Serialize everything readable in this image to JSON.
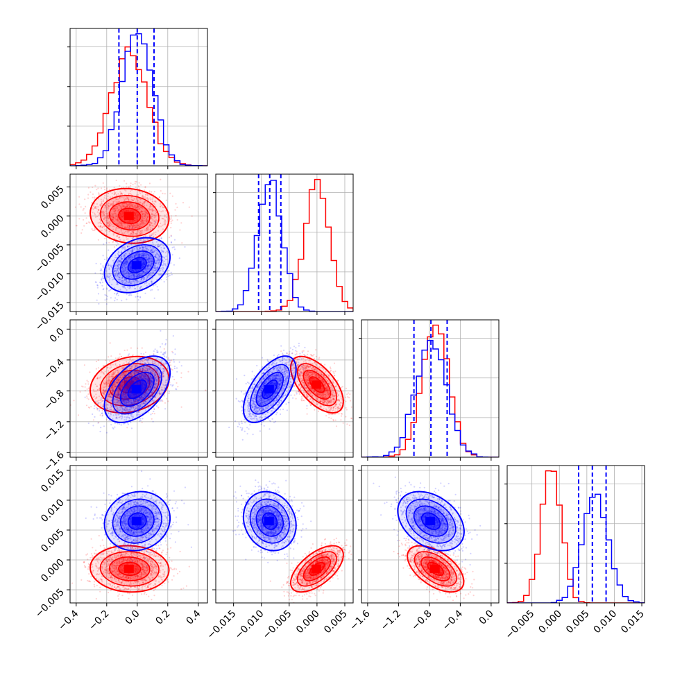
{
  "chart_data": {
    "type": "scatter",
    "kind": "corner plot",
    "grid": true,
    "series": [
      {
        "color": "#ff0000",
        "mean": [
          -0.05,
          0.0,
          -0.72,
          -0.0015
        ],
        "sd": [
          0.12,
          0.0022,
          0.17,
          0.0018
        ],
        "corr": [
          [
            0,
            1,
            -0.1
          ],
          [
            0,
            2,
            0.2
          ],
          [
            0,
            3,
            -0.05
          ],
          [
            1,
            2,
            -0.6
          ],
          [
            1,
            3,
            0.6
          ],
          [
            2,
            3,
            -0.55
          ]
        ]
      },
      {
        "color": "#0000ff",
        "mean": [
          0.0,
          -0.0085,
          -0.78,
          0.0065
        ],
        "sd": [
          0.1,
          0.0022,
          0.2,
          0.0023
        ],
        "corr": [
          [
            0,
            1,
            0.3
          ],
          [
            0,
            2,
            0.5
          ],
          [
            0,
            3,
            0.1
          ],
          [
            1,
            2,
            0.6
          ],
          [
            1,
            3,
            -0.15
          ],
          [
            2,
            3,
            -0.35
          ]
        ]
      }
    ],
    "quantile_lines": [
      [
        -0.12,
        0.0,
        0.11
      ],
      [
        -0.0105,
        -0.0085,
        -0.0065
      ],
      [
        -1.0,
        -0.78,
        -0.57
      ],
      [
        0.0035,
        0.006,
        0.0085
      ]
    ],
    "x_ranges": [
      [
        -0.44,
        0.46
      ],
      [
        -0.0182,
        0.0065
      ],
      [
        -1.68,
        0.1
      ],
      [
        -0.0095,
        0.0155
      ]
    ],
    "y_ranges": [
      null,
      [
        -0.0165,
        0.0072
      ],
      [
        -1.66,
        0.12
      ],
      [
        -0.0072,
        0.0158
      ]
    ],
    "axes": [
      {
        "ticks": [
          -0.4,
          -0.2,
          0.0,
          0.2,
          0.4
        ],
        "tick_labels": [
          "−0.4",
          "−0.2",
          "0.0",
          "0.2",
          "0.4"
        ]
      },
      {
        "ticks": [
          -0.015,
          -0.01,
          -0.005,
          0.0,
          0.005
        ],
        "tick_labels": [
          "−0.015",
          "−0.010",
          "−0.005",
          "0.000",
          "0.005"
        ]
      },
      {
        "ticks": [
          -1.6,
          -1.2,
          -0.8,
          -0.4,
          0.0
        ],
        "tick_labels": [
          "−1.6",
          "−1.2",
          "−0.8",
          "−0.4",
          "0.0"
        ]
      },
      {
        "ticks": [
          -0.005,
          0.0,
          0.005,
          0.01,
          0.015
        ],
        "tick_labels": [
          "−0.005",
          "0.000",
          "0.005",
          "0.010",
          "0.015"
        ]
      }
    ],
    "y_axes": [
      null,
      {
        "ticks": [
          -0.015,
          -0.01,
          -0.005,
          0.0,
          0.005
        ],
        "tick_labels": [
          "−0.015",
          "−0.010",
          "−0.005",
          "0.000",
          "0.005"
        ]
      },
      {
        "ticks": [
          -1.6,
          -1.2,
          -0.8,
          -0.4,
          0.0
        ],
        "tick_labels": [
          "−1.6",
          "−1.2",
          "−0.8",
          "−0.4",
          "0.0"
        ]
      },
      {
        "ticks": [
          -0.005,
          0.0,
          0.005,
          0.01,
          0.015
        ],
        "tick_labels": [
          "−0.005",
          "0.000",
          "0.005",
          "0.010",
          "0.015"
        ]
      }
    ]
  }
}
